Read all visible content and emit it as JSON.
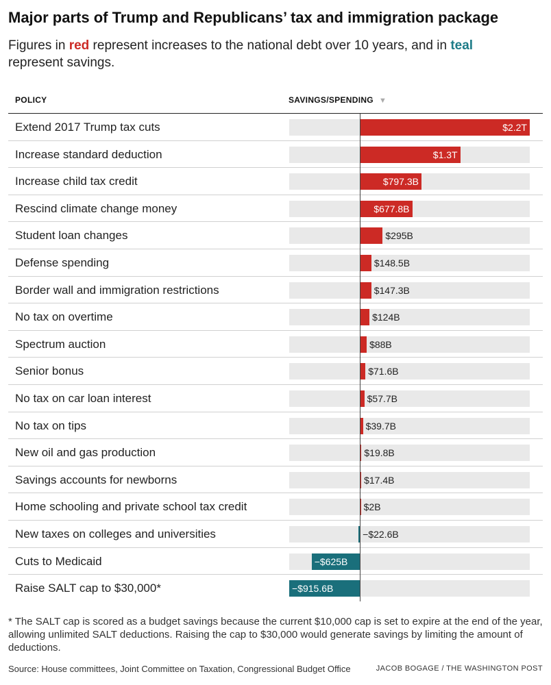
{
  "title": "Major parts of Trump and Republicans’ tax and immigration package",
  "subtitle": {
    "part1": "Figures in ",
    "red_word": "red",
    "part2": " represent increases to the national debt over 10 years, and in ",
    "teal_word": "teal",
    "part3": " represent savings."
  },
  "columns": {
    "policy": "POLICY",
    "value": "SAVINGS/SPENDING",
    "sort_icon": "sort-down-triangle-icon"
  },
  "colors": {
    "increase": "#cc2a25",
    "savings": "#1a6f7b",
    "track": "#e9e9e9"
  },
  "chart_data": {
    "type": "bar",
    "orientation": "horizontal",
    "unit": "USD billions",
    "xlim": [
      -915.6,
      2200
    ],
    "categories": [
      "Extend 2017 Trump tax cuts",
      "Increase standard deduction",
      "Increase child tax credit",
      "Rescind climate change money",
      "Student loan changes",
      "Defense spending",
      "Border wall and immigration restrictions",
      "No tax on overtime",
      "Spectrum auction",
      "Senior bonus",
      "No tax on car loan interest",
      "No tax on tips",
      "New oil and gas production",
      "Savings accounts for newborns",
      "Home schooling and private school tax credit",
      "New taxes on colleges and universities",
      "Cuts to Medicaid",
      "Raise SALT cap to $30,000*"
    ],
    "values": [
      2200,
      1300,
      797.3,
      677.8,
      295,
      148.5,
      147.3,
      124,
      88,
      71.6,
      57.7,
      39.7,
      19.8,
      17.4,
      2,
      -22.6,
      -625,
      -915.6
    ],
    "labels": [
      "$2.2T",
      "$1.3T",
      "$797.3B",
      "$677.8B",
      "$295B",
      "$148.5B",
      "$147.3B",
      "$124B",
      "$88B",
      "$71.6B",
      "$57.7B",
      "$39.7B",
      "$19.8B",
      "$17.4B",
      "$2B",
      "−$22.6B",
      "−$625B",
      "−$915.6B"
    ]
  },
  "footnote": "* The SALT cap is scored as a budget savings because the current $10,000 cap is set to expire at the end of the year, allowing unlimited SALT deductions. Raising the cap to $30,000 would generate savings by limiting the amount of deductions.",
  "source": "Source: House committees, Joint Committee on Taxation, Congressional Budget Office",
  "credit": "JACOB BOGAGE / THE WASHINGTON POST"
}
